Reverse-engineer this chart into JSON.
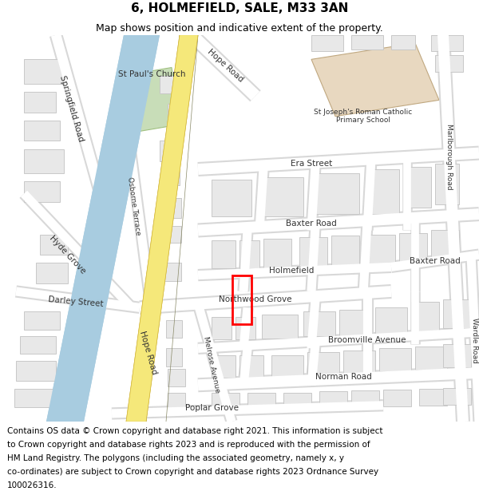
{
  "title": "6, HOLMEFIELD, SALE, M33 3AN",
  "subtitle": "Map shows position and indicative extent of the property.",
  "footer_lines": [
    "Contains OS data © Crown copyright and database right 2021. This information is subject",
    "to Crown copyright and database rights 2023 and is reproduced with the permission of",
    "HM Land Registry. The polygons (including the associated geometry, namely x, y",
    "co-ordinates) are subject to Crown copyright and database rights 2023 Ordnance Survey",
    "100026316."
  ],
  "title_fontsize": 11,
  "subtitle_fontsize": 9,
  "footer_fontsize": 7.5,
  "map_bg": "#f5f5f5",
  "header_bg": "#ffffff",
  "footer_bg": "#ffffff",
  "road_white": "#ffffff",
  "road_outline": "#d8d8d8",
  "building_fill": "#e8e8e8",
  "building_edge": "#c8c8c8",
  "canal_fill": "#a8cce0",
  "yellow_road_fill": "#f5e87a",
  "yellow_road_edge": "#d4b840",
  "green_fill": "#c8ddb8",
  "green_edge": "#a0c080",
  "school_fill": "#e8d8c0",
  "school_edge": "#c0a880",
  "red_rect_color": "#ff0000",
  "label_color": "#333333",
  "label_fs": 7.5
}
